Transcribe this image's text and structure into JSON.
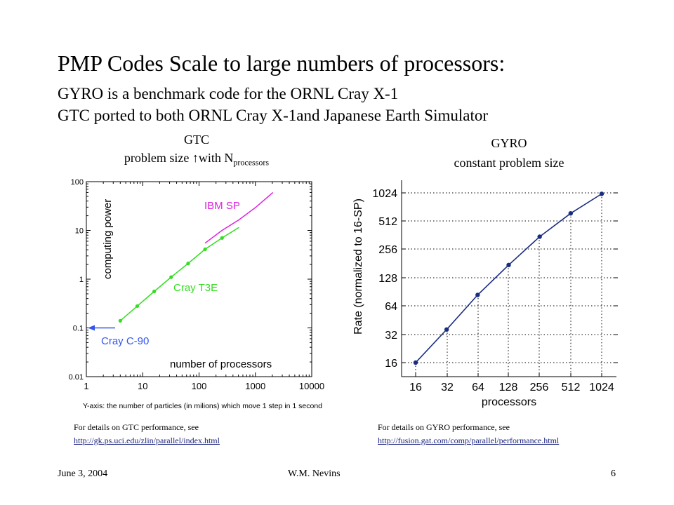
{
  "slide": {
    "title": "PMP Codes Scale to large numbers of processors:",
    "subtitle_1": "GYRO is a benchmark code for the ORNL Cray X-1",
    "subtitle_2": "GTC ported to both ORNL Cray X-1and Japanese Earth Simulator",
    "footer_date": "June 3, 2004",
    "footer_author": "W.M. Nevins",
    "footer_page": "6"
  },
  "gtc_panel": {
    "caption_line1": "GTC",
    "caption_prefix": "problem size ",
    "caption_arrow": "↑",
    "caption_mid": "with N",
    "caption_sub": "processors",
    "details_text": "For details on GTC performance, see",
    "details_url": "http://gk.ps.uci.edu/zlin/parallel/index.html",
    "yaxis_note": "Y-axis: the number of particles (in milions) which move 1 step in 1 second"
  },
  "gyro_panel": {
    "caption_line1": "GYRO",
    "caption_line2": "constant problem size",
    "details_text": "For details on GYRO performance, see",
    "details_url": "http://fusion.gat.com/comp/parallel/performance.html"
  },
  "chart_data": [
    {
      "type": "line",
      "xscale": "log",
      "yscale": "log",
      "xlabel": "number of processors",
      "ylabel": "computing power",
      "xlim": [
        1,
        10000
      ],
      "ylim": [
        0.01,
        100
      ],
      "x_ticks": [
        1,
        10,
        100,
        1000,
        10000
      ],
      "x_tick_labels": [
        "1",
        "10",
        "100",
        "1000",
        "10000"
      ],
      "y_ticks": [
        0.01,
        0.1,
        1,
        10,
        100
      ],
      "y_tick_labels": [
        "0.01",
        "0.1",
        "1",
        "10",
        "100"
      ],
      "series": [
        {
          "name": "Cray T3E",
          "color": "#33dd22",
          "markers": true,
          "x": [
            4,
            8,
            16,
            32,
            64,
            128,
            256,
            512
          ],
          "y": [
            0.14,
            0.28,
            0.56,
            1.1,
            2.1,
            4.1,
            7.0,
            11.5
          ]
        },
        {
          "name": "IBM SP",
          "color": "#dd22dd",
          "markers": false,
          "x": [
            128,
            256,
            512,
            1024,
            2048
          ],
          "y": [
            5.5,
            10,
            16.5,
            30,
            60
          ]
        }
      ],
      "annotations": [
        {
          "text": "Cray C-90",
          "color": "#3355ee",
          "value": 0.1,
          "arrow": "pointing-left-at-y-axis"
        }
      ]
    },
    {
      "type": "line",
      "xscale": "log2",
      "yscale": "log2",
      "xlabel": "processors",
      "ylabel": "Rate (normalized to 16-SP)",
      "xlim": [
        16,
        1024
      ],
      "ylim": [
        16,
        1024
      ],
      "x_tick_labels": [
        "16",
        "32",
        "64",
        "128",
        "256",
        "512",
        "1024"
      ],
      "y_tick_labels": [
        "16",
        "32",
        "64",
        "128",
        "256",
        "512",
        "1024"
      ],
      "grid": "dotted",
      "series": [
        {
          "color": "#1a2e80",
          "markers": true,
          "x": [
            16,
            32,
            64,
            128,
            256,
            512,
            1024
          ],
          "y": [
            16,
            36,
            84,
            175,
            350,
            620,
            1000
          ]
        }
      ]
    }
  ]
}
